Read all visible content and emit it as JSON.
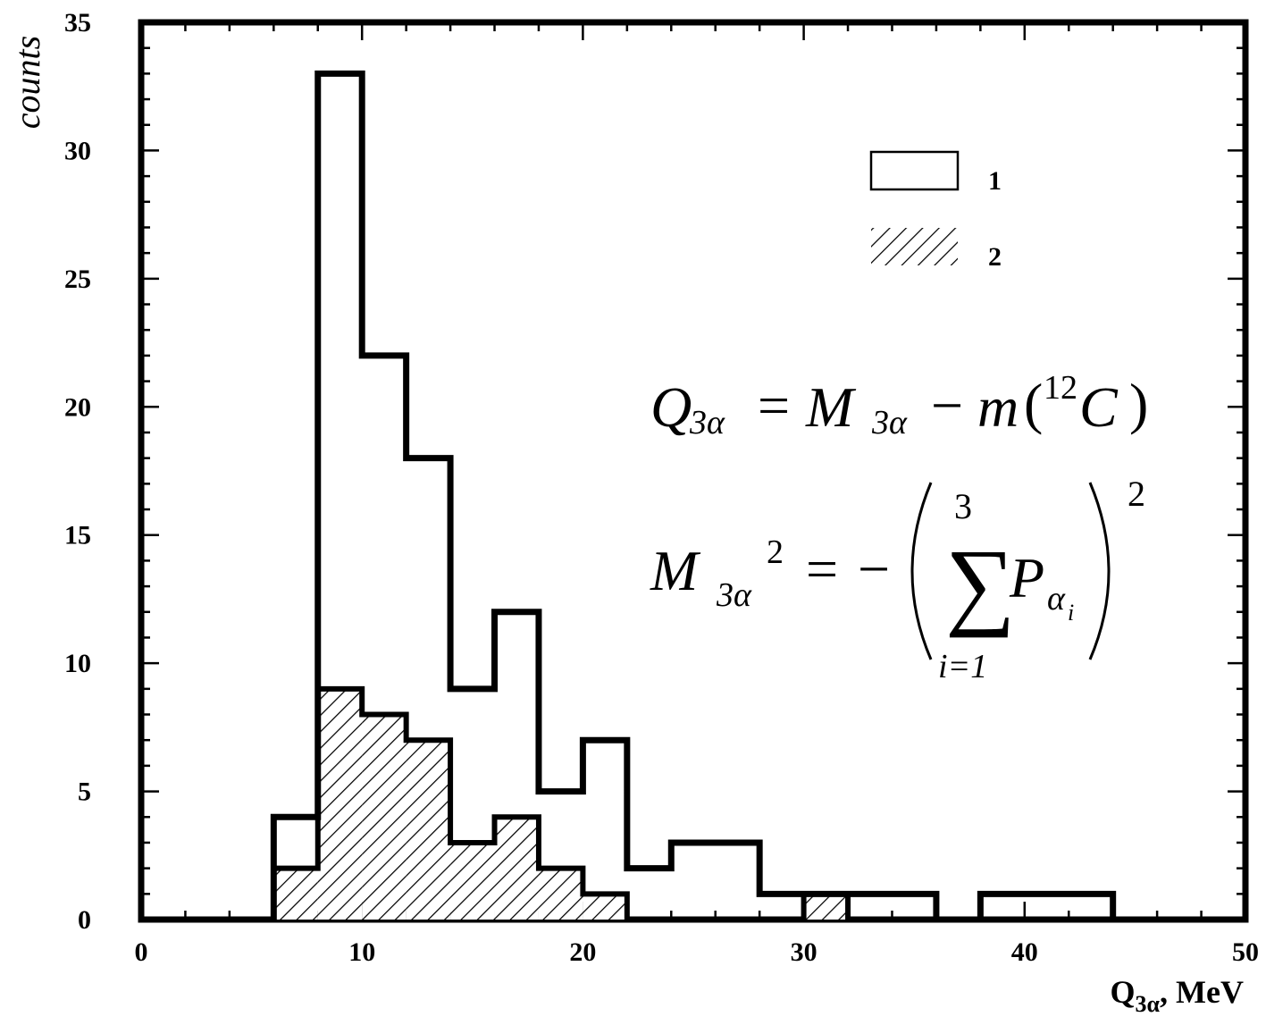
{
  "chart_data": {
    "type": "histogram",
    "ylabel": "counts",
    "xlabel": {
      "main": "Q",
      "sub": "3α",
      "suffix": ", MeV"
    },
    "xlim": [
      0,
      50
    ],
    "ylim": [
      0,
      35
    ],
    "xticks": [
      0,
      10,
      20,
      30,
      40,
      50
    ],
    "yticks": [
      0,
      5,
      10,
      15,
      20,
      25,
      30,
      35
    ],
    "bin_edges": [
      6,
      8,
      10,
      12,
      14,
      16,
      18,
      20,
      22,
      24,
      26,
      28,
      30,
      32,
      34,
      36,
      38,
      40,
      42,
      44
    ],
    "series": [
      {
        "name": "1",
        "style": "open",
        "values": [
          4,
          33,
          22,
          18,
          9,
          12,
          5,
          7,
          2,
          3,
          3,
          1,
          1,
          1,
          1,
          0,
          1,
          1,
          1
        ]
      },
      {
        "name": "2",
        "style": "hatched",
        "values": [
          2,
          9,
          8,
          7,
          3,
          4,
          2,
          1,
          0,
          0,
          0,
          0,
          1,
          0,
          0,
          0,
          0,
          0,
          0
        ]
      }
    ],
    "legend": {
      "placement": "top-right",
      "entries": [
        "1",
        "2"
      ]
    },
    "annotations": {
      "eq1": {
        "Q": "Q",
        "Qsub": "3α",
        "eq": "=",
        "M": "M",
        "Msub": "3α",
        "minus": "−",
        "m": "m",
        "lparen": "(",
        "mass": "12",
        "C": "C",
        "rparen": ")"
      },
      "eq2": {
        "M": "M",
        "Msub": "3α",
        "Mexp": "2",
        "eq": "=",
        "minus": "−",
        "sum": "∑",
        "upper": "3",
        "lower": "i=1",
        "P": "P",
        "Psub": "α",
        "Psubsub": "i",
        "exp": "2"
      }
    }
  }
}
